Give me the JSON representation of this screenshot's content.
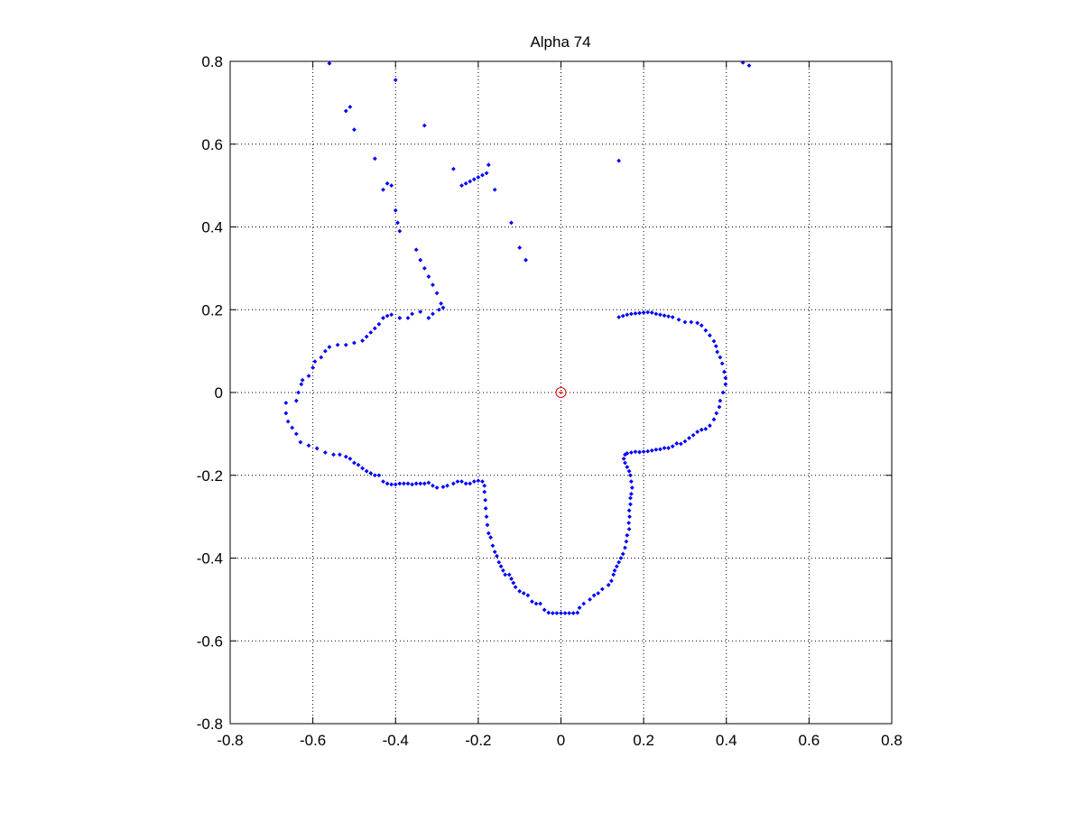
{
  "chart_data": {
    "type": "scatter",
    "title": "Alpha 74",
    "xlabel": "",
    "ylabel": "",
    "xlim": [
      -0.8,
      0.8
    ],
    "ylim": [
      -0.8,
      0.8
    ],
    "x_ticks": [
      -0.8,
      -0.6,
      -0.4,
      -0.2,
      0,
      0.2,
      0.4,
      0.6,
      0.8
    ],
    "y_ticks": [
      -0.8,
      -0.6,
      -0.4,
      -0.2,
      0,
      0.2,
      0.4,
      0.6,
      0.8
    ],
    "x_tick_labels": [
      "-0.8",
      "-0.6",
      "-0.4",
      "-0.2",
      "0",
      "0.2",
      "0.4",
      "0.6",
      "0.8"
    ],
    "y_tick_labels": [
      "-0.8",
      "-0.6",
      "-0.4",
      "-0.2",
      "0",
      "0.2",
      "0.4",
      "0.6",
      "0.8"
    ],
    "grid": true,
    "legend": "none",
    "colors": {
      "points": "#0000ff",
      "origin_marker": "#ff0000"
    },
    "origin_marker": {
      "x": 0,
      "y": 0,
      "shape": "circle"
    },
    "series": [
      {
        "marker": "dot",
        "points": [
          [
            0.14,
            0.182
          ],
          [
            0.15,
            0.185
          ],
          [
            0.16,
            0.188
          ],
          [
            0.17,
            0.19
          ],
          [
            0.18,
            0.191
          ],
          [
            0.19,
            0.192
          ],
          [
            0.2,
            0.193
          ],
          [
            0.21,
            0.194
          ],
          [
            0.22,
            0.193
          ],
          [
            0.23,
            0.19
          ],
          [
            0.24,
            0.188
          ],
          [
            0.25,
            0.186
          ],
          [
            0.26,
            0.184
          ],
          [
            0.27,
            0.182
          ],
          [
            0.285,
            0.176
          ],
          [
            0.3,
            0.17
          ],
          [
            0.315,
            0.17
          ],
          [
            0.33,
            0.168
          ],
          [
            0.34,
            0.162
          ],
          [
            0.35,
            0.15
          ],
          [
            0.36,
            0.138
          ],
          [
            0.37,
            0.124
          ],
          [
            0.375,
            0.112
          ],
          [
            0.378,
            0.098
          ],
          [
            0.385,
            0.085
          ],
          [
            0.39,
            0.07
          ],
          [
            0.395,
            0.05
          ],
          [
            0.398,
            0.035
          ],
          [
            0.398,
            0.02
          ],
          [
            0.392,
            0.0
          ],
          [
            0.385,
            -0.02
          ],
          [
            0.383,
            -0.035
          ],
          [
            0.376,
            -0.05
          ],
          [
            0.37,
            -0.065
          ],
          [
            0.36,
            -0.08
          ],
          [
            0.35,
            -0.088
          ],
          [
            0.34,
            -0.09
          ],
          [
            0.33,
            -0.095
          ],
          [
            0.32,
            -0.103
          ],
          [
            0.31,
            -0.11
          ],
          [
            0.3,
            -0.118
          ],
          [
            0.29,
            -0.124
          ],
          [
            0.28,
            -0.123
          ],
          [
            0.27,
            -0.13
          ],
          [
            0.26,
            -0.134
          ],
          [
            0.25,
            -0.134
          ],
          [
            0.24,
            -0.137
          ],
          [
            0.23,
            -0.138
          ],
          [
            0.22,
            -0.14
          ],
          [
            0.21,
            -0.142
          ],
          [
            0.2,
            -0.143
          ],
          [
            0.19,
            -0.144
          ],
          [
            0.18,
            -0.143
          ],
          [
            0.17,
            -0.145
          ],
          [
            0.16,
            -0.147
          ],
          [
            0.155,
            -0.15
          ],
          [
            0.152,
            -0.16
          ],
          [
            0.155,
            -0.17
          ],
          [
            0.16,
            -0.18
          ],
          [
            0.165,
            -0.19
          ],
          [
            0.168,
            -0.2
          ],
          [
            0.17,
            -0.215
          ],
          [
            0.172,
            -0.23
          ],
          [
            0.17,
            -0.245
          ],
          [
            0.168,
            -0.255
          ],
          [
            0.168,
            -0.27
          ],
          [
            0.165,
            -0.285
          ],
          [
            0.166,
            -0.3
          ],
          [
            0.164,
            -0.315
          ],
          [
            0.165,
            -0.33
          ],
          [
            0.16,
            -0.345
          ],
          [
            0.158,
            -0.36
          ],
          [
            0.155,
            -0.375
          ],
          [
            0.15,
            -0.39
          ],
          [
            0.145,
            -0.4
          ],
          [
            0.14,
            -0.41
          ],
          [
            0.135,
            -0.42
          ],
          [
            0.13,
            -0.43
          ],
          [
            0.127,
            -0.44
          ],
          [
            0.122,
            -0.455
          ],
          [
            0.115,
            -0.465
          ],
          [
            0.1,
            -0.475
          ],
          [
            0.09,
            -0.485
          ],
          [
            0.08,
            -0.49
          ],
          [
            0.07,
            -0.5
          ],
          [
            0.055,
            -0.51
          ],
          [
            0.045,
            -0.52
          ],
          [
            0.04,
            -0.532
          ],
          [
            0.03,
            -0.533
          ],
          [
            0.02,
            -0.533
          ],
          [
            0.01,
            -0.533
          ],
          [
            0.0,
            -0.533
          ],
          [
            -0.01,
            -0.533
          ],
          [
            -0.02,
            -0.533
          ],
          [
            -0.03,
            -0.532
          ],
          [
            -0.04,
            -0.525
          ],
          [
            -0.05,
            -0.51
          ],
          [
            -0.06,
            -0.51
          ],
          [
            -0.07,
            -0.505
          ],
          [
            -0.08,
            -0.49
          ],
          [
            -0.09,
            -0.485
          ],
          [
            -0.1,
            -0.48
          ],
          [
            -0.11,
            -0.47
          ],
          [
            -0.115,
            -0.46
          ],
          [
            -0.12,
            -0.45
          ],
          [
            -0.125,
            -0.44
          ],
          [
            -0.135,
            -0.44
          ],
          [
            -0.14,
            -0.43
          ],
          [
            -0.145,
            -0.42
          ],
          [
            -0.15,
            -0.41
          ],
          [
            -0.155,
            -0.395
          ],
          [
            -0.16,
            -0.385
          ],
          [
            -0.165,
            -0.37
          ],
          [
            -0.17,
            -0.35
          ],
          [
            -0.175,
            -0.34
          ],
          [
            -0.178,
            -0.32
          ],
          [
            -0.18,
            -0.3
          ],
          [
            -0.182,
            -0.28
          ],
          [
            -0.183,
            -0.26
          ],
          [
            -0.185,
            -0.24
          ],
          [
            -0.185,
            -0.225
          ],
          [
            -0.19,
            -0.215
          ],
          [
            -0.2,
            -0.213
          ],
          [
            -0.21,
            -0.215
          ],
          [
            -0.22,
            -0.22
          ],
          [
            -0.23,
            -0.22
          ],
          [
            -0.24,
            -0.215
          ],
          [
            -0.25,
            -0.215
          ],
          [
            -0.26,
            -0.22
          ],
          [
            -0.275,
            -0.225
          ],
          [
            -0.285,
            -0.228
          ],
          [
            -0.3,
            -0.23
          ],
          [
            -0.31,
            -0.225
          ],
          [
            -0.32,
            -0.218
          ],
          [
            -0.33,
            -0.22
          ],
          [
            -0.34,
            -0.22
          ],
          [
            -0.35,
            -0.22
          ],
          [
            -0.36,
            -0.222
          ],
          [
            -0.37,
            -0.22
          ],
          [
            -0.38,
            -0.22
          ],
          [
            -0.39,
            -0.22
          ],
          [
            -0.4,
            -0.222
          ],
          [
            -0.41,
            -0.222
          ],
          [
            -0.42,
            -0.22
          ],
          [
            -0.43,
            -0.215
          ],
          [
            -0.44,
            -0.2
          ],
          [
            -0.45,
            -0.2
          ],
          [
            -0.46,
            -0.195
          ],
          [
            -0.47,
            -0.19
          ],
          [
            -0.48,
            -0.183
          ],
          [
            -0.49,
            -0.175
          ],
          [
            -0.5,
            -0.17
          ],
          [
            -0.51,
            -0.16
          ],
          [
            -0.52,
            -0.155
          ],
          [
            -0.535,
            -0.15
          ],
          [
            -0.55,
            -0.15
          ],
          [
            -0.57,
            -0.145
          ],
          [
            -0.59,
            -0.135
          ],
          [
            -0.61,
            -0.128
          ],
          [
            -0.63,
            -0.12
          ],
          [
            -0.64,
            -0.1
          ],
          [
            -0.65,
            -0.085
          ],
          [
            -0.66,
            -0.07
          ],
          [
            -0.665,
            -0.05
          ],
          [
            -0.665,
            -0.025
          ],
          [
            -0.64,
            -0.02
          ],
          [
            -0.635,
            0.0
          ],
          [
            -0.628,
            0.02
          ],
          [
            -0.625,
            0.03
          ],
          [
            -0.61,
            0.04
          ],
          [
            -0.6,
            0.06
          ],
          [
            -0.595,
            0.075
          ],
          [
            -0.58,
            0.085
          ],
          [
            -0.57,
            0.1
          ],
          [
            -0.56,
            0.11
          ],
          [
            -0.54,
            0.115
          ],
          [
            -0.52,
            0.115
          ],
          [
            -0.5,
            0.12
          ],
          [
            -0.48,
            0.125
          ],
          [
            -0.47,
            0.135
          ],
          [
            -0.46,
            0.145
          ],
          [
            -0.45,
            0.155
          ],
          [
            -0.44,
            0.165
          ],
          [
            -0.43,
            0.18
          ],
          [
            -0.42,
            0.185
          ],
          [
            -0.41,
            0.188
          ],
          [
            -0.39,
            0.18
          ],
          [
            -0.37,
            0.18
          ],
          [
            -0.36,
            0.19
          ],
          [
            -0.34,
            0.195
          ],
          [
            -0.32,
            0.18
          ],
          [
            -0.31,
            0.19
          ],
          [
            -0.295,
            0.2
          ],
          [
            -0.285,
            0.205
          ],
          [
            -0.29,
            0.215
          ],
          [
            -0.3,
            0.24
          ],
          [
            -0.31,
            0.26
          ],
          [
            -0.32,
            0.28
          ],
          [
            -0.33,
            0.3
          ],
          [
            -0.34,
            0.32
          ],
          [
            -0.35,
            0.345
          ],
          [
            -0.39,
            0.39
          ],
          [
            -0.395,
            0.41
          ],
          [
            -0.4,
            0.44
          ],
          [
            -0.41,
            0.5
          ],
          [
            -0.42,
            0.505
          ],
          [
            -0.43,
            0.49
          ],
          [
            -0.45,
            0.565
          ],
          [
            -0.5,
            0.635
          ],
          [
            -0.51,
            0.69
          ],
          [
            -0.52,
            0.68
          ],
          [
            -0.56,
            0.795
          ],
          [
            -0.4,
            0.755
          ],
          [
            -0.33,
            0.645
          ],
          [
            -0.26,
            0.54
          ],
          [
            -0.24,
            0.5
          ],
          [
            -0.23,
            0.505
          ],
          [
            -0.22,
            0.51
          ],
          [
            -0.21,
            0.515
          ],
          [
            -0.2,
            0.52
          ],
          [
            -0.19,
            0.525
          ],
          [
            -0.18,
            0.53
          ],
          [
            -0.175,
            0.55
          ],
          [
            -0.16,
            0.49
          ],
          [
            -0.12,
            0.41
          ],
          [
            -0.1,
            0.35
          ],
          [
            -0.085,
            0.32
          ],
          [
            0.14,
            0.56
          ],
          [
            0.44,
            0.797
          ],
          [
            0.455,
            0.79
          ]
        ]
      }
    ]
  }
}
